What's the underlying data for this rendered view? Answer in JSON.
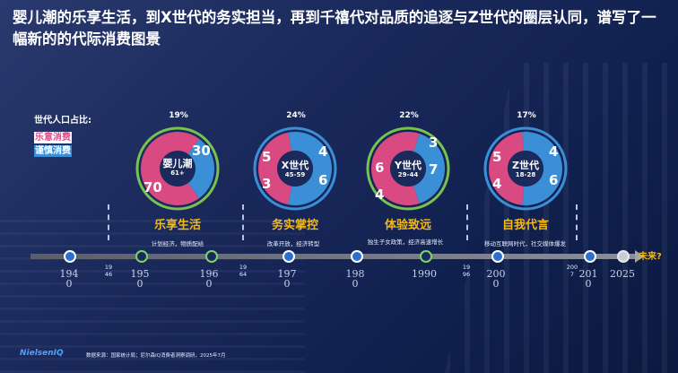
{
  "title": "婴儿潮的乐享生活，到X世代的务实担当，再到千禧代对品质的追逐与Z世代的圈层认同，谱写了一幅新的的代际消费图景",
  "legend": {
    "population_label": "世代人口占比:",
    "enjoy_label": "乐意消费",
    "cautious_label": "谨慎消费"
  },
  "colors": {
    "enjoy": "#d94a82",
    "cautious": "#3b8fd6",
    "ring": "#79c151",
    "accent": "#f5b816"
  },
  "generations": [
    {
      "share": "19%",
      "name": "婴儿潮",
      "range": "61+",
      "enjoy": "70",
      "cautious": "30",
      "enjoy_frac": 0.7,
      "stage": "乐享生活",
      "desc": "计划经济，物质配给"
    },
    {
      "share": "24%",
      "name": "X世代",
      "range": "45-59",
      "enjoy_top": "5",
      "enjoy_bottom": "3",
      "cautious_top": "4",
      "cautious_bottom": "6",
      "enjoy_frac": 0.44,
      "stage": "务实掌控",
      "desc": "改革开放，经济转型"
    },
    {
      "share": "22%",
      "name": "Y世代",
      "range": "29-44",
      "enjoy_top": "6",
      "enjoy_bottom": "4",
      "cautious_top": "3",
      "cautious_bottom": "7",
      "enjoy_frac": 0.6,
      "stage": "体验致远",
      "desc": "独生子女政策，经济高速增长"
    },
    {
      "share": "17%",
      "name": "Z世代",
      "range": "18-28",
      "enjoy_top": "5",
      "enjoy_bottom": "4",
      "cautious_top": "4",
      "cautious_bottom": "6",
      "enjoy_frac": 0.47,
      "stage": "自我代言",
      "desc": "移动互联网时代，社交媒体爆发"
    }
  ],
  "timeline": {
    "years": [
      "194\n0",
      "195\n0",
      "196\n0",
      "197\n0",
      "198\n0",
      "1990",
      "200\n0",
      "201\n0",
      "2025"
    ],
    "small_years": [
      "19\n46",
      "19\n64",
      "19\n96",
      "200\n7"
    ],
    "future_label": "未来?"
  },
  "footer": {
    "logo": "NielsenIQ",
    "source": "数据来源：国家统计局；尼尔森IQ消费者洞察调研，2025年7月"
  }
}
